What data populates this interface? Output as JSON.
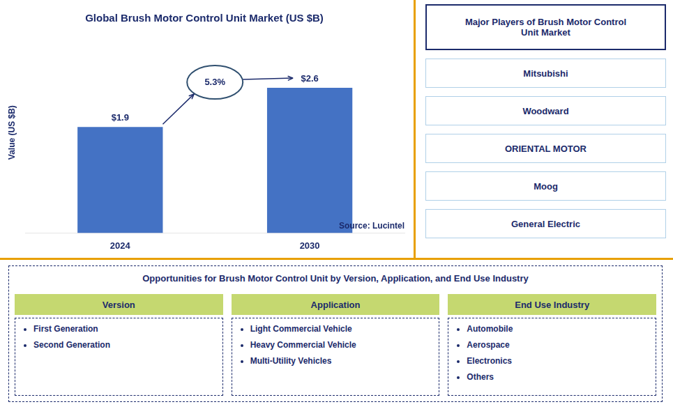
{
  "chart_data": {
    "type": "bar",
    "title": "Global Brush Motor Control Unit Market (US $B)",
    "ylabel": "Value (US $B)",
    "categories": [
      "2024",
      "2030"
    ],
    "values": [
      1.9,
      2.6
    ],
    "value_labels": [
      "$1.9",
      "$2.6"
    ],
    "data_labels": true,
    "color": "#4472C4",
    "ylim": [
      0,
      3.6
    ],
    "tick_labels": "x",
    "grid": false,
    "annotations": [
      "5.3%",
      "Source: Lucintel"
    ]
  },
  "players_title": "Major Players of Brush Motor Control\nUnit Market",
  "players": [
    "Mitsubishi",
    "Woodward",
    "ORIENTAL MOTOR",
    "Moog",
    "General Electric"
  ],
  "opp_title": "Opportunities for Brush Motor Control Unit by Version, Application, and End Use Industry",
  "opp_columns": [
    {
      "header": "Version",
      "items": [
        "First Generation",
        "Second Generation"
      ]
    },
    {
      "header": "Application",
      "items": [
        "Light Commercial Vehicle",
        "Heavy Commercial Vehicle",
        "Multi-Utility Vehicles"
      ]
    },
    {
      "header": "End Use Industry",
      "items": [
        "Automobile",
        "Aerospace",
        "Electronics",
        "Others"
      ]
    }
  ]
}
